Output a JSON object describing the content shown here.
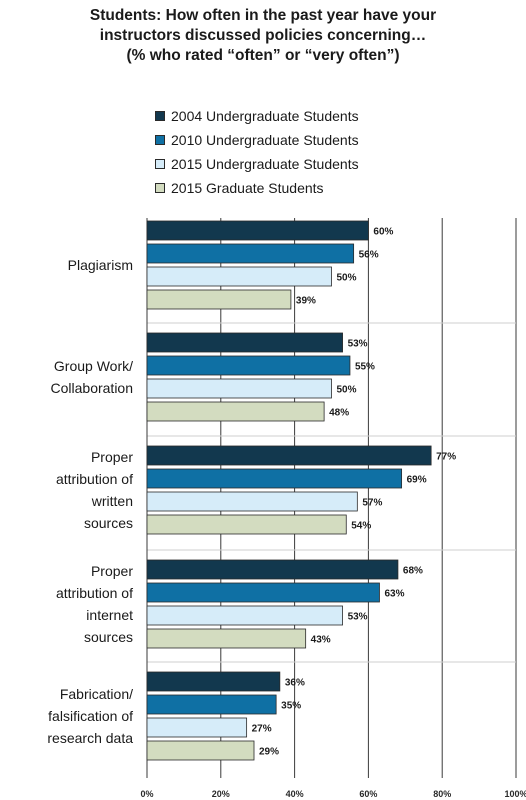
{
  "chart_data": {
    "type": "bar",
    "orientation": "horizontal",
    "title_lines": [
      "Students: How often in the past year have your",
      "instructors discussed policies concerning…",
      "(% who rated “often” or “very often”)"
    ],
    "categories": [
      [
        "Plagiarism"
      ],
      [
        "Group Work/",
        "Collaboration"
      ],
      [
        "Proper",
        "attribution of",
        "written",
        "sources"
      ],
      [
        "Proper",
        "attribution of",
        "internet",
        "sources"
      ],
      [
        "Fabrication/",
        "falsification of",
        "research data"
      ]
    ],
    "series": [
      {
        "name": "2004 Undergraduate Students",
        "color": "#12384e",
        "values": [
          60,
          53,
          77,
          68,
          36
        ]
      },
      {
        "name": "2010 Undergraduate Students",
        "color": "#0f70a4",
        "values": [
          56,
          55,
          69,
          63,
          35
        ]
      },
      {
        "name": "2015 Undergraduate Students",
        "color": "#d6ecf9",
        "values": [
          50,
          50,
          57,
          53,
          27
        ]
      },
      {
        "name": "2015 Graduate Students",
        "color": "#d3dcc0",
        "values": [
          39,
          48,
          54,
          43,
          29
        ]
      }
    ],
    "value_suffix": "%",
    "xlim": [
      0,
      100
    ],
    "xticks": [
      0,
      20,
      40,
      60,
      80,
      100
    ],
    "xtick_labels": [
      "0%",
      "20%",
      "40%",
      "60%",
      "80%",
      "100%"
    ],
    "grid": true,
    "legend_position": "top"
  }
}
